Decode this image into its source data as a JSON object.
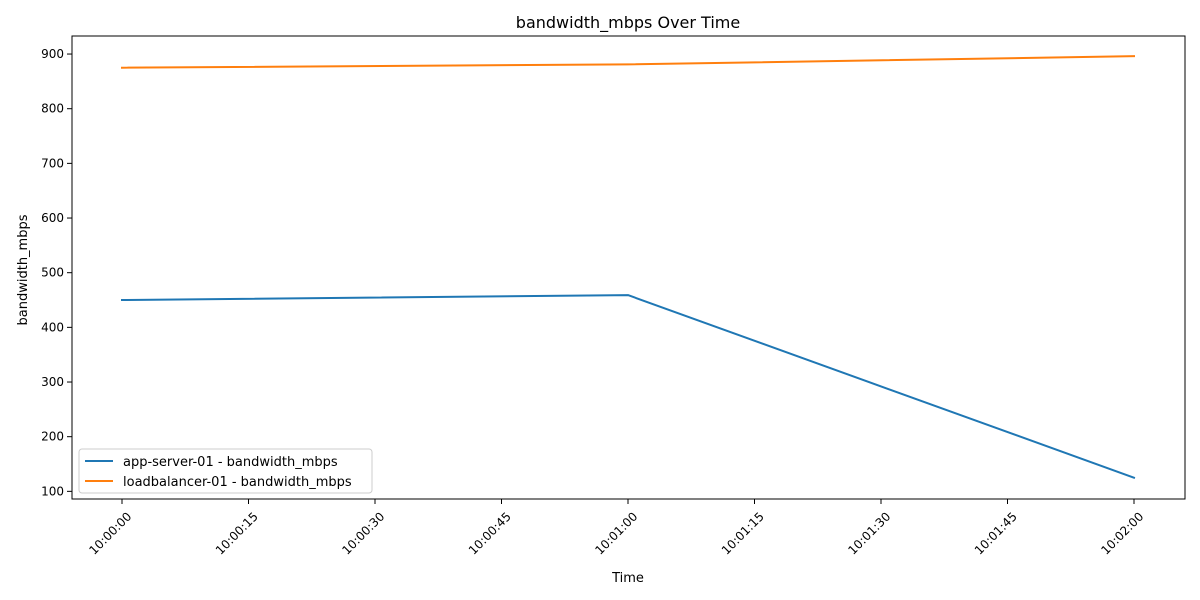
{
  "chart_data": {
    "type": "line",
    "title": "bandwidth_mbps Over Time",
    "xlabel": "Time",
    "ylabel": "bandwidth_mbps",
    "x": [
      "10:00:00",
      "10:01:00",
      "10:02:00"
    ],
    "x_ticks": [
      "10:00:00",
      "10:00:15",
      "10:00:30",
      "10:00:45",
      "10:01:00",
      "10:01:15",
      "10:01:30",
      "10:01:45",
      "10:02:00"
    ],
    "y_ticks": [
      100,
      200,
      300,
      400,
      500,
      600,
      700,
      800,
      900
    ],
    "ylim": [
      86,
      933
    ],
    "grid": false,
    "legend_position": "lower-left",
    "series": [
      {
        "name": "app-server-01 - bandwidth_mbps",
        "color": "#1f77b4",
        "values": [
          450,
          459,
          125
        ]
      },
      {
        "name": "loadbalancer-01 - bandwidth_mbps",
        "color": "#ff7f0e",
        "values": [
          875,
          881,
          896
        ]
      }
    ]
  }
}
